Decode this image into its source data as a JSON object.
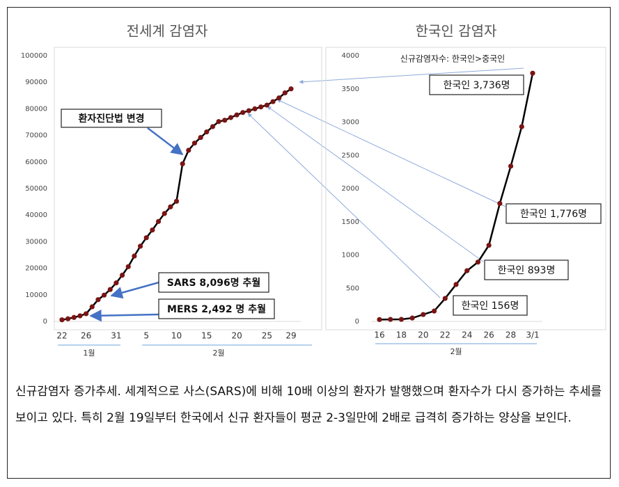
{
  "chart_data": [
    {
      "type": "line",
      "title": "전세계 감염자",
      "categories": [
        "22",
        null,
        null,
        null,
        "26",
        null,
        null,
        null,
        null,
        "31",
        null,
        null,
        null,
        null,
        "5",
        null,
        null,
        null,
        null,
        "10",
        null,
        null,
        null,
        null,
        "15",
        null,
        null,
        null,
        null,
        "20",
        null,
        null,
        null,
        null,
        "25",
        null,
        null,
        null,
        "29"
      ],
      "x_groups": [
        "1월",
        "2월"
      ],
      "values": [
        600,
        1000,
        1500,
        2100,
        2900,
        5500,
        8200,
        9900,
        12000,
        14500,
        17400,
        20600,
        24600,
        28300,
        31500,
        34400,
        37600,
        40600,
        43100,
        45200,
        59300,
        64400,
        67100,
        69200,
        71300,
        73300,
        75200,
        75700,
        76700,
        77700,
        78600,
        79300,
        80000,
        80700,
        81400,
        82700,
        84100,
        86000,
        87500
      ],
      "color": "#000000",
      "marker_color": "#7a1515",
      "ylim": [
        0,
        100000
      ],
      "yticks": [
        0,
        10000,
        20000,
        30000,
        40000,
        50000,
        60000,
        70000,
        80000,
        90000,
        100000
      ],
      "grid": false,
      "annotations": [
        "환자진단법 변경",
        "SARS 8,096명 추월",
        "MERS 2,492 명 추월"
      ]
    },
    {
      "type": "line",
      "title": "한국인 감염자",
      "subtitle": "신규감염자수: 한국인>중국인",
      "categories": [
        "16",
        null,
        "18",
        null,
        "20",
        null,
        "22",
        null,
        "24",
        null,
        "26",
        null,
        "28",
        null,
        "3/1"
      ],
      "x_groups": [
        "2월"
      ],
      "values": [
        28,
        30,
        31,
        51,
        104,
        156,
        346,
        556,
        763,
        893,
        1146,
        1776,
        2337,
        2931,
        3736
      ],
      "color": "#000000",
      "marker_color": "#7a1515",
      "ylim": [
        0,
        4000
      ],
      "yticks": [
        0,
        500,
        1000,
        1500,
        2000,
        2500,
        3000,
        3500,
        4000
      ],
      "grid": false,
      "annotations": [
        "한국인 3,736명",
        "한국인 1,776명",
        "한국인 893명",
        "한국인 156명"
      ]
    }
  ],
  "caption": "신규감염자 증가추세. 세계적으로 사스(SARS)에 비해 10배 이상의 환자가 발행했으며 환자수가 다시 증가하는 추세를 보이고 있다. 특히 2월 19일부터 한국에서 신규 환자들이 평균 2-3일만에 2배로 급격히 증가하는 양상을 보인다."
}
